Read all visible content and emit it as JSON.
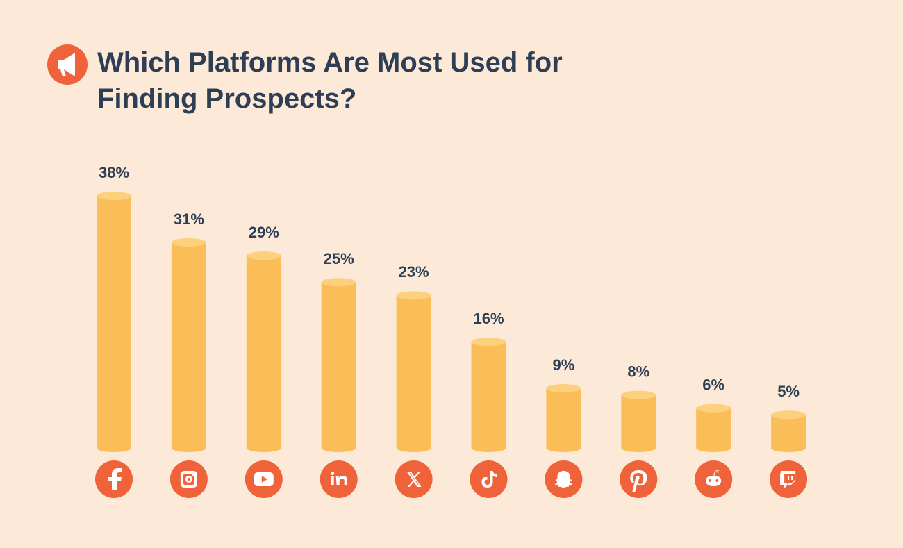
{
  "chart_data": {
    "type": "bar",
    "title": "Which Platforms Are Most Used for Finding Prospects?",
    "categories": [
      null,
      null,
      null,
      null,
      null,
      null,
      null,
      null,
      null,
      null
    ],
    "values": [
      38,
      31,
      29,
      25,
      23,
      16,
      9,
      8,
      6,
      5
    ],
    "value_labels": [
      "38%",
      "31%",
      "29%",
      "25%",
      "23%",
      "16%",
      "9%",
      "8%",
      "6%",
      "5%"
    ],
    "color": "#fbbd57"
  }
}
